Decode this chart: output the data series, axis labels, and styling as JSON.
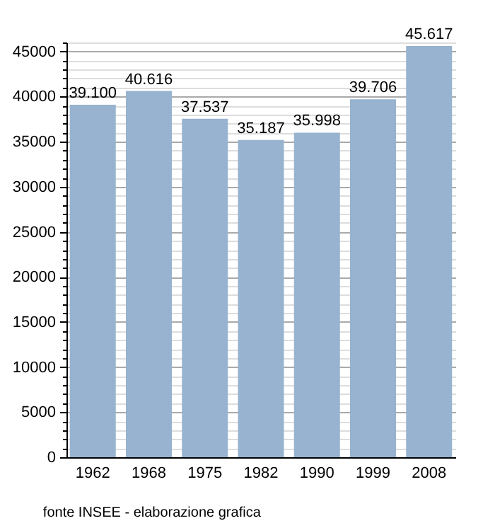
{
  "chart_data": {
    "type": "bar",
    "categories": [
      "1962",
      "1968",
      "1975",
      "1982",
      "1990",
      "1999",
      "2008"
    ],
    "values": [
      39100,
      40616,
      37537,
      35187,
      35998,
      39706,
      45617
    ],
    "value_labels": [
      "39.100",
      "40.616",
      "37.537",
      "35.187",
      "35.998",
      "39.706",
      "45.617"
    ],
    "color": "#97b3cf",
    "ylim": [
      0,
      46000
    ],
    "yticks": [
      0,
      {
        "value": 1000,
        "label": null
      },
      {
        "value": 2000,
        "label": null
      },
      {
        "value": 3000,
        "label": null
      },
      {
        "value": 4000,
        "label": null
      },
      5000,
      {
        "value": 6000,
        "label": null
      },
      {
        "value": 7000,
        "label": null
      },
      {
        "value": 8000,
        "label": null
      },
      {
        "value": 9000,
        "label": null
      },
      10000,
      {
        "value": 11000,
        "label": null
      },
      {
        "value": 12000,
        "label": null
      },
      {
        "value": 13000,
        "label": null
      },
      {
        "value": 14000,
        "label": null
      },
      15000,
      {
        "value": 16000,
        "label": null
      },
      {
        "value": 17000,
        "label": null
      },
      {
        "value": 18000,
        "label": null
      },
      {
        "value": 19000,
        "label": null
      },
      20000,
      {
        "value": 21000,
        "label": null
      },
      {
        "value": 22000,
        "label": null
      },
      {
        "value": 23000,
        "label": null
      },
      {
        "value": 24000,
        "label": null
      },
      25000,
      {
        "value": 26000,
        "label": null
      },
      {
        "value": 27000,
        "label": null
      },
      {
        "value": 28000,
        "label": null
      },
      {
        "value": 29000,
        "label": null
      },
      30000,
      {
        "value": 31000,
        "label": null
      },
      {
        "value": 32000,
        "label": null
      },
      {
        "value": 33000,
        "label": null
      },
      {
        "value": 34000,
        "label": null
      },
      35000,
      {
        "value": 36000,
        "label": null
      },
      {
        "value": 37000,
        "label": null
      },
      {
        "value": 38000,
        "label": null
      },
      {
        "value": 39000,
        "label": null
      },
      40000,
      {
        "value": 41000,
        "label": null
      },
      {
        "value": 42000,
        "label": null
      },
      {
        "value": 43000,
        "label": null
      },
      {
        "value": 44000,
        "label": null
      },
      45000,
      {
        "value": 46000,
        "label": null
      }
    ],
    "grid": true,
    "annotations": [
      "fonte INSEE - elaborazione grafica"
    ]
  }
}
